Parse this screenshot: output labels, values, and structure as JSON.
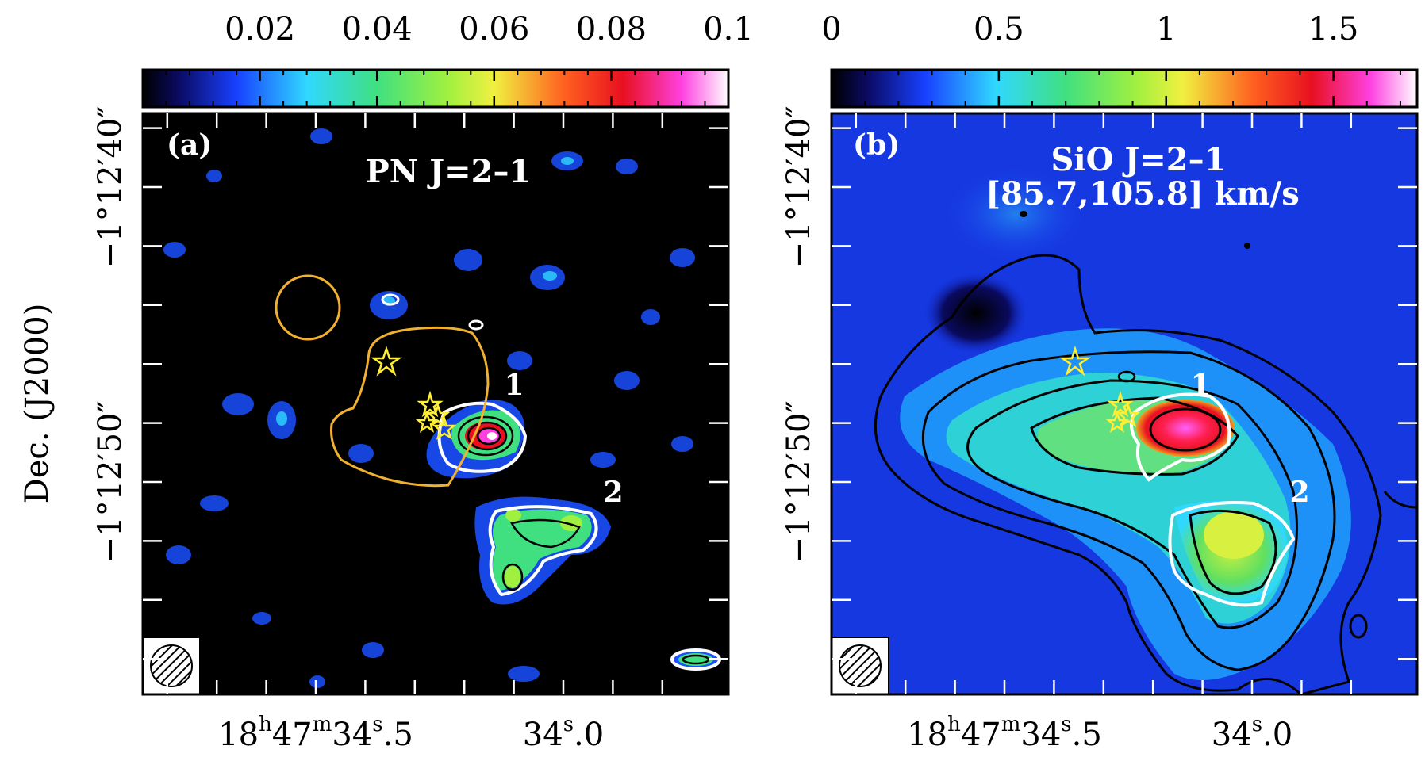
{
  "chart_data": [
    {
      "type": "heatmap",
      "panel_label": "(a)",
      "title": "PN J=2–1",
      "colorbar": {
        "ticks": [
          "0.02",
          "0.04",
          "0.06",
          "0.08",
          "0.1"
        ],
        "tick_values": [
          0.02,
          0.04,
          0.06,
          0.08,
          0.1
        ],
        "range": [
          0.0,
          0.1
        ],
        "colormap": "black-blue-cyan-green-yellow-red-magenta-white"
      },
      "regions": [
        {
          "label": "1",
          "ra_s": 34.26,
          "dec_s": 45.5
        },
        {
          "label": "2",
          "ra_s": 34.02,
          "dec_s": 49.8
        }
      ],
      "x_ticks": {
        "labels": [
          {
            "h": "18",
            "m": "47",
            "s": "34",
            "frac": ".5"
          },
          {
            "h": "",
            "m": "",
            "s": "34",
            "frac": ".0"
          }
        ],
        "values_s": [
          34.5,
          34.0
        ]
      }
    },
    {
      "type": "heatmap",
      "panel_label": "(b)",
      "title": "SiO J=2–1",
      "subtitle": "[85.7,105.8] km/s",
      "colorbar": {
        "ticks": [
          "0",
          "0.5",
          "1",
          "1.5"
        ],
        "tick_values": [
          0,
          0.5,
          1.0,
          1.5
        ],
        "range": [
          0.0,
          1.75
        ],
        "colormap": "black-blue-cyan-green-yellow-red-magenta-white"
      },
      "regions": [
        {
          "label": "1",
          "ra_s": 34.22,
          "dec_s": 45.5
        },
        {
          "label": "2",
          "ra_s": 34.0,
          "dec_s": 49.8
        }
      ],
      "x_ticks": {
        "labels": [
          {
            "h": "18",
            "m": "47",
            "s": "34",
            "frac": ".5"
          },
          {
            "h": "",
            "m": "",
            "s": "34",
            "frac": ".0"
          }
        ],
        "values_s": [
          34.5,
          34.0
        ]
      }
    }
  ],
  "shared_y_axis": {
    "title": "Dec. (J2000)",
    "ticks": [
      "−1°12′40″",
      "−1°12′50″"
    ],
    "values_arcsec": [
      40,
      50
    ]
  },
  "marker_color": "#ffee33",
  "contour_white": "#ffffff",
  "contour_black": "#000000",
  "beam_icon": "hatched-ellipse-icon",
  "star_icon": "star-marker-icon"
}
